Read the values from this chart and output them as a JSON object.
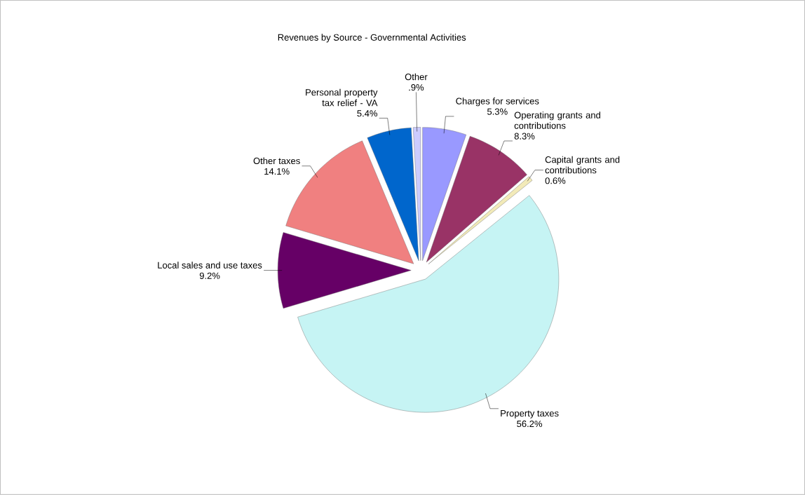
{
  "chart_data": {
    "type": "pie",
    "title": "Revenues by Source - Governmental Activities",
    "categories": [
      "Charges for services",
      "Operating grants and contributions",
      "Capital grants and contributions",
      "Property taxes",
      "Local sales and use taxes",
      "Other taxes",
      "Personal property tax relief - VA",
      "Other"
    ],
    "values": [
      5.3,
      8.3,
      0.6,
      56.2,
      9.2,
      14.1,
      5.4,
      0.9
    ],
    "value_labels": [
      "5.3%",
      "8.3%",
      "0.6%",
      "56.2%",
      "9.2%",
      "14.1%",
      "5.4%",
      ".9%"
    ],
    "colors": [
      "#9999ff",
      "#993366",
      "#f2eab8",
      "#c6f4f4",
      "#660066",
      "#f08080",
      "#0066cc",
      "#ccccff"
    ]
  }
}
